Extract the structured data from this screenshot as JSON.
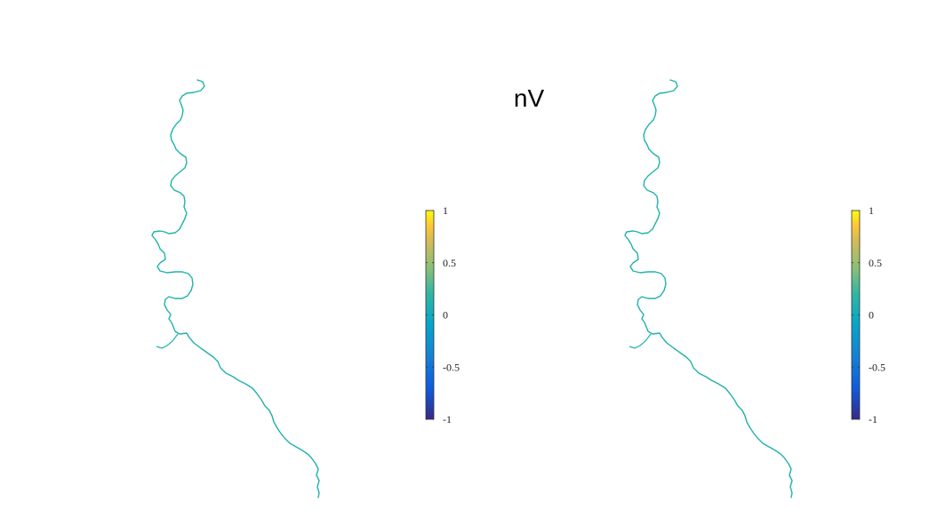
{
  "figure": {
    "title": "nV"
  },
  "chart_data": [
    {
      "type": "heatmap",
      "title": "nV",
      "colorbar": {
        "colormap": "parula",
        "clim": [
          -1,
          1
        ],
        "ticks": [
          1,
          0.5,
          0,
          -0.5,
          -1
        ],
        "tick_labels": [
          "1",
          "0.5",
          "0",
          "-0.5",
          "-1"
        ],
        "placement": "right"
      },
      "field_value": 0,
      "field_color": "#20b2aa"
    },
    {
      "type": "heatmap",
      "colorbar": {
        "colormap": "parula",
        "clim": [
          -1,
          1
        ],
        "ticks": [
          1,
          0.5,
          0,
          -0.5,
          -1
        ],
        "tick_labels": [
          "1",
          "0.5",
          "0",
          "-0.5",
          "-1"
        ],
        "placement": "right"
      },
      "field_value": 0,
      "field_color": "#20b2aa"
    }
  ]
}
